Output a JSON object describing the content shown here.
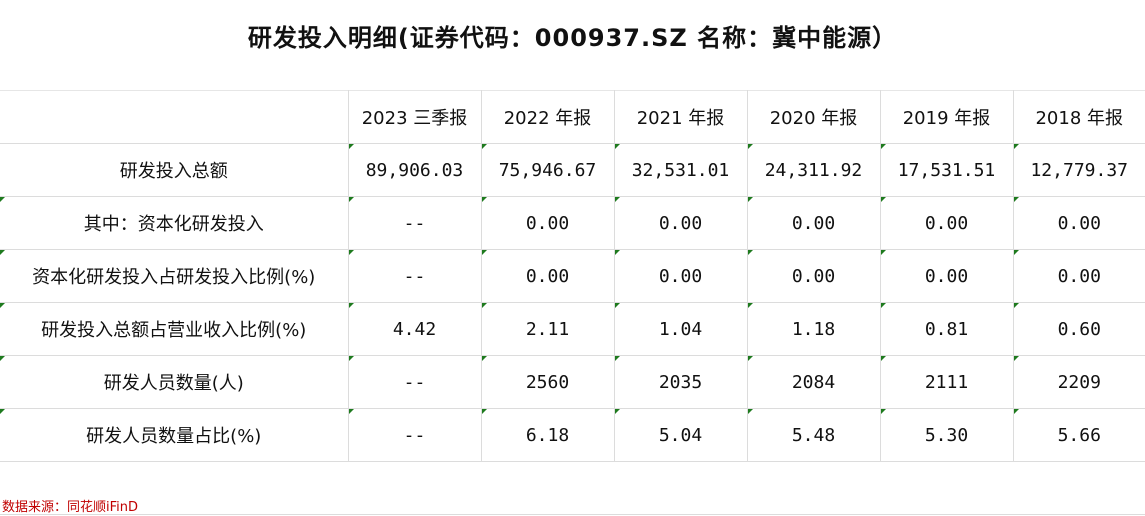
{
  "title": "研发投入明细(证券代码：000937.SZ 名称：冀中能源）",
  "columns": [
    "",
    "2023 三季报",
    "2022 年报",
    "2021 年报",
    "2020 年报",
    "2019 年报",
    "2018 年报"
  ],
  "rows": [
    {
      "label": "研发投入总额",
      "values": [
        "89,906.03",
        "75,946.67",
        "32,531.01",
        "24,311.92",
        "17,531.51",
        "12,779.37"
      ]
    },
    {
      "label": "其中：资本化研发投入",
      "values": [
        "--",
        "0.00",
        "0.00",
        "0.00",
        "0.00",
        "0.00"
      ]
    },
    {
      "label": "资本化研发投入占研发投入比例(%)",
      "values": [
        "--",
        "0.00",
        "0.00",
        "0.00",
        "0.00",
        "0.00"
      ]
    },
    {
      "label": "研发投入总额占营业收入比例(%)",
      "values": [
        "4.42",
        "2.11",
        "1.04",
        "1.18",
        "0.81",
        "0.60"
      ]
    },
    {
      "label": "研发人员数量(人)",
      "values": [
        "--",
        "2560",
        "2035",
        "2084",
        "2111",
        "2209"
      ]
    },
    {
      "label": "研发人员数量占比(%)",
      "values": [
        "--",
        "6.18",
        "5.04",
        "5.48",
        "5.30",
        "5.66"
      ]
    }
  ],
  "source": "数据来源：同花顺iFinD",
  "colors": {
    "source": "#c00000",
    "cell_marker": "#1e7a1e",
    "grid": "#dcdcdc"
  }
}
